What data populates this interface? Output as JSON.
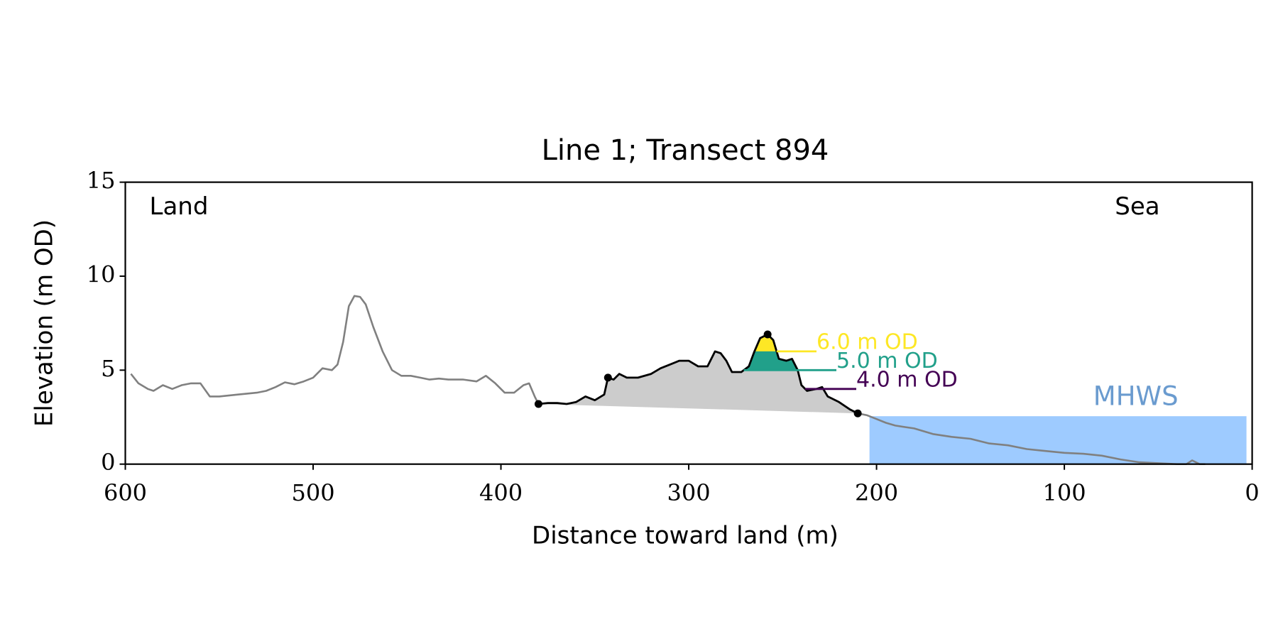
{
  "chart_data": {
    "type": "line",
    "title": "Line 1; Transect 894",
    "xlabel": "Distance toward land (m)",
    "ylabel": "Elevation (m OD)",
    "xlim": [
      600,
      0
    ],
    "ylim": [
      0,
      15
    ],
    "xticks": [
      600,
      500,
      400,
      300,
      200,
      100,
      0
    ],
    "yticks": [
      0,
      5,
      10,
      15
    ],
    "land_label": "Land",
    "sea_label": "Sea",
    "profile_land": {
      "color": "#808080",
      "x": [
        597,
        593,
        588,
        585,
        580,
        575,
        570,
        565,
        560,
        555,
        550,
        545,
        540,
        530,
        525,
        520,
        515,
        510,
        505,
        500,
        495,
        490,
        487,
        484,
        481,
        478,
        475,
        472,
        468,
        463,
        458,
        453,
        448,
        443,
        438,
        433,
        428,
        420,
        413,
        408,
        403,
        398,
        393,
        388,
        385,
        382,
        380
      ],
      "y": [
        4.8,
        4.3,
        4.0,
        3.9,
        4.2,
        4.0,
        4.2,
        4.3,
        4.3,
        3.6,
        3.6,
        3.65,
        3.7,
        3.8,
        3.9,
        4.1,
        4.35,
        4.25,
        4.4,
        4.6,
        5.1,
        5.0,
        5.3,
        6.5,
        8.4,
        8.95,
        8.9,
        8.5,
        7.3,
        6.0,
        5.0,
        4.7,
        4.7,
        4.6,
        4.5,
        4.55,
        4.5,
        4.5,
        4.4,
        4.7,
        4.3,
        3.8,
        3.8,
        4.2,
        4.3,
        3.6,
        3.2
      ]
    },
    "profile_sea": {
      "color": "#808080",
      "x": [
        210,
        205,
        200,
        195,
        190,
        180,
        170,
        160,
        150,
        140,
        130,
        120,
        110,
        100,
        90,
        80,
        70,
        60,
        50,
        40,
        35,
        32,
        28,
        25
      ],
      "y": [
        2.7,
        2.6,
        2.4,
        2.2,
        2.05,
        1.9,
        1.6,
        1.45,
        1.35,
        1.1,
        1.0,
        0.8,
        0.7,
        0.6,
        0.55,
        0.45,
        0.25,
        0.1,
        0.05,
        0.0,
        0.0,
        0.2,
        0.0,
        0.0
      ]
    },
    "dune": {
      "color": "#000000",
      "fill": "#cccccc",
      "x": [
        380,
        375,
        370,
        365,
        360,
        355,
        350,
        345,
        343,
        340,
        337,
        333,
        327,
        320,
        315,
        310,
        305,
        300,
        295,
        290,
        286,
        283,
        280,
        277,
        272,
        268,
        265,
        262,
        258,
        255,
        252,
        248,
        245,
        242,
        240,
        237,
        232,
        229,
        226,
        220,
        214,
        210
      ],
      "y": [
        3.2,
        3.25,
        3.25,
        3.2,
        3.3,
        3.6,
        3.4,
        3.7,
        4.6,
        4.5,
        4.8,
        4.6,
        4.6,
        4.8,
        5.1,
        5.3,
        5.5,
        5.5,
        5.2,
        5.2,
        6.0,
        5.9,
        5.5,
        4.9,
        4.9,
        5.2,
        6.0,
        6.7,
        6.9,
        6.6,
        5.6,
        5.5,
        5.6,
        5.0,
        4.2,
        3.9,
        4.0,
        4.1,
        3.6,
        3.3,
        2.9,
        2.7
      ]
    },
    "markers": {
      "color": "#000000",
      "x": [
        380,
        343,
        258,
        210
      ],
      "y": [
        3.2,
        4.6,
        6.9,
        2.7
      ]
    },
    "mhws": {
      "value": 2.55,
      "label": "MHWS",
      "color": "#9ecbff",
      "label_color": "#6a9bcf"
    },
    "levels": [
      {
        "value": 6,
        "label": "6.0 m OD",
        "color": "#fde725",
        "filled": true
      },
      {
        "value": 5,
        "label": "5.0 m OD",
        "color": "#21a08a",
        "filled": true
      },
      {
        "value": 4,
        "label": "4.0 m OD",
        "color": "#440154",
        "filled": false
      }
    ]
  }
}
